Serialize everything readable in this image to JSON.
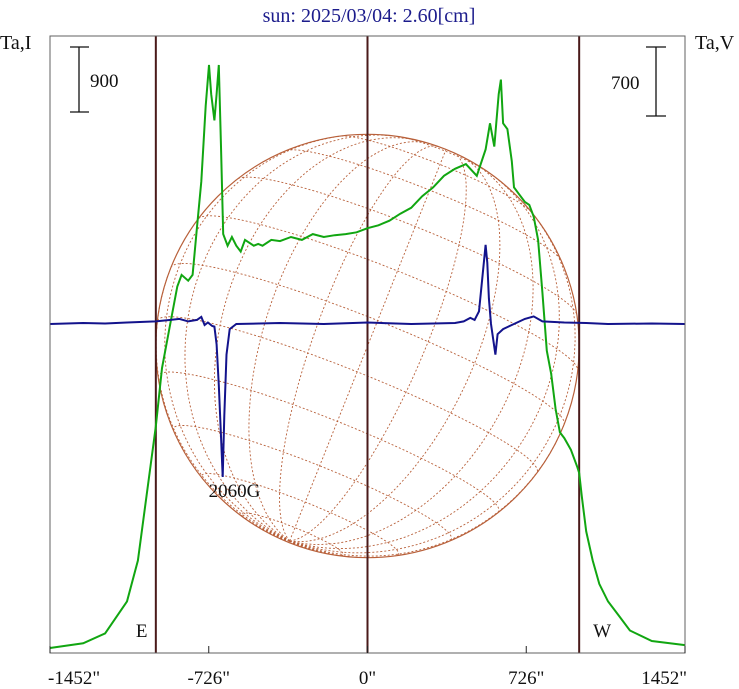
{
  "chart_data": {
    "type": "line",
    "title": "sun: 2025/03/04: 2.60[cm]",
    "left_axis_label": "Ta,I",
    "right_axis_label": "Ta,V",
    "left_scale_bar_value": "900",
    "right_scale_bar_value": "700",
    "x_ticks": [
      {
        "value": -1452,
        "label": "-1452\""
      },
      {
        "value": -726,
        "label": "-726\""
      },
      {
        "value": 0,
        "label": "0\""
      },
      {
        "value": 726,
        "label": "726\""
      },
      {
        "value": 1452,
        "label": "1452\""
      }
    ],
    "xlim": [
      -1452,
      1452
    ],
    "vertical_lines": [
      -968,
      0,
      968
    ],
    "limb_labels": [
      {
        "x": -968,
        "label": "E"
      },
      {
        "x": 968,
        "label": "W"
      }
    ],
    "annotations": [
      {
        "x": -580,
        "label": "2060G"
      }
    ],
    "solar_disk": {
      "radius_arcsec": 968,
      "grid": "heliographic latitude/longitude",
      "color": "#b8603a"
    },
    "series": [
      {
        "id": "I",
        "color": "#11a611",
        "points": [
          [
            -1452,
            0
          ],
          [
            -1300,
            8
          ],
          [
            -1200,
            25
          ],
          [
            -1100,
            80
          ],
          [
            -1050,
            150
          ],
          [
            -1000,
            290
          ],
          [
            -968,
            380
          ],
          [
            -940,
            480
          ],
          [
            -900,
            560
          ],
          [
            -870,
            620
          ],
          [
            -850,
            640
          ],
          [
            -820,
            630
          ],
          [
            -800,
            640
          ],
          [
            -780,
            720
          ],
          [
            -760,
            800
          ],
          [
            -740,
            930
          ],
          [
            -725,
            1000
          ],
          [
            -715,
            950
          ],
          [
            -700,
            905
          ],
          [
            -690,
            950
          ],
          [
            -680,
            1000
          ],
          [
            -670,
            860
          ],
          [
            -660,
            710
          ],
          [
            -640,
            690
          ],
          [
            -620,
            705
          ],
          [
            -600,
            690
          ],
          [
            -580,
            680
          ],
          [
            -560,
            700
          ],
          [
            -540,
            695
          ],
          [
            -520,
            690
          ],
          [
            -500,
            693
          ],
          [
            -480,
            690
          ],
          [
            -440,
            700
          ],
          [
            -400,
            698
          ],
          [
            -350,
            705
          ],
          [
            -300,
            700
          ],
          [
            -250,
            710
          ],
          [
            -200,
            705
          ],
          [
            -150,
            708
          ],
          [
            -100,
            710
          ],
          [
            -50,
            713
          ],
          [
            0,
            720
          ],
          [
            50,
            725
          ],
          [
            100,
            733
          ],
          [
            150,
            745
          ],
          [
            200,
            755
          ],
          [
            250,
            775
          ],
          [
            300,
            790
          ],
          [
            350,
            810
          ],
          [
            400,
            822
          ],
          [
            450,
            830
          ],
          [
            500,
            810
          ],
          [
            540,
            855
          ],
          [
            560,
            900
          ],
          [
            580,
            860
          ],
          [
            600,
            950
          ],
          [
            610,
            975
          ],
          [
            620,
            900
          ],
          [
            640,
            890
          ],
          [
            660,
            835
          ],
          [
            670,
            790
          ],
          [
            690,
            780
          ],
          [
            720,
            765
          ],
          [
            740,
            760
          ],
          [
            760,
            740
          ],
          [
            780,
            700
          ],
          [
            800,
            610
          ],
          [
            820,
            510
          ],
          [
            840,
            470
          ],
          [
            860,
            410
          ],
          [
            880,
            370
          ],
          [
            900,
            360
          ],
          [
            930,
            340
          ],
          [
            960,
            310
          ],
          [
            968,
            300
          ],
          [
            980,
            260
          ],
          [
            1000,
            200
          ],
          [
            1030,
            150
          ],
          [
            1060,
            110
          ],
          [
            1100,
            80
          ],
          [
            1150,
            55
          ],
          [
            1200,
            30
          ],
          [
            1300,
            12
          ],
          [
            1452,
            5
          ]
        ]
      },
      {
        "id": "V",
        "color": "#13138c",
        "points": [
          [
            -1452,
            0
          ],
          [
            -1300,
            2
          ],
          [
            -1200,
            1
          ],
          [
            -1100,
            3
          ],
          [
            -968,
            5
          ],
          [
            -900,
            8
          ],
          [
            -860,
            10
          ],
          [
            -820,
            5
          ],
          [
            -780,
            8
          ],
          [
            -760,
            14
          ],
          [
            -745,
            -2
          ],
          [
            -730,
            3
          ],
          [
            -710,
            -4
          ],
          [
            -700,
            -5
          ],
          [
            -690,
            -40
          ],
          [
            -680,
            -120
          ],
          [
            -670,
            -220
          ],
          [
            -662,
            -300
          ],
          [
            -655,
            -180
          ],
          [
            -645,
            -60
          ],
          [
            -630,
            -10
          ],
          [
            -600,
            0
          ],
          [
            -400,
            2
          ],
          [
            -200,
            0
          ],
          [
            0,
            3
          ],
          [
            200,
            0
          ],
          [
            400,
            2
          ],
          [
            440,
            5
          ],
          [
            470,
            12
          ],
          [
            490,
            8
          ],
          [
            510,
            25
          ],
          [
            525,
            90
          ],
          [
            540,
            155
          ],
          [
            548,
            120
          ],
          [
            555,
            50
          ],
          [
            565,
            0
          ],
          [
            575,
            -30
          ],
          [
            585,
            -60
          ],
          [
            595,
            -20
          ],
          [
            620,
            -10
          ],
          [
            660,
            -2
          ],
          [
            720,
            10
          ],
          [
            760,
            15
          ],
          [
            800,
            5
          ],
          [
            900,
            3
          ],
          [
            1000,
            2
          ],
          [
            1100,
            0
          ],
          [
            1300,
            1
          ],
          [
            1452,
            0
          ]
        ]
      }
    ]
  }
}
